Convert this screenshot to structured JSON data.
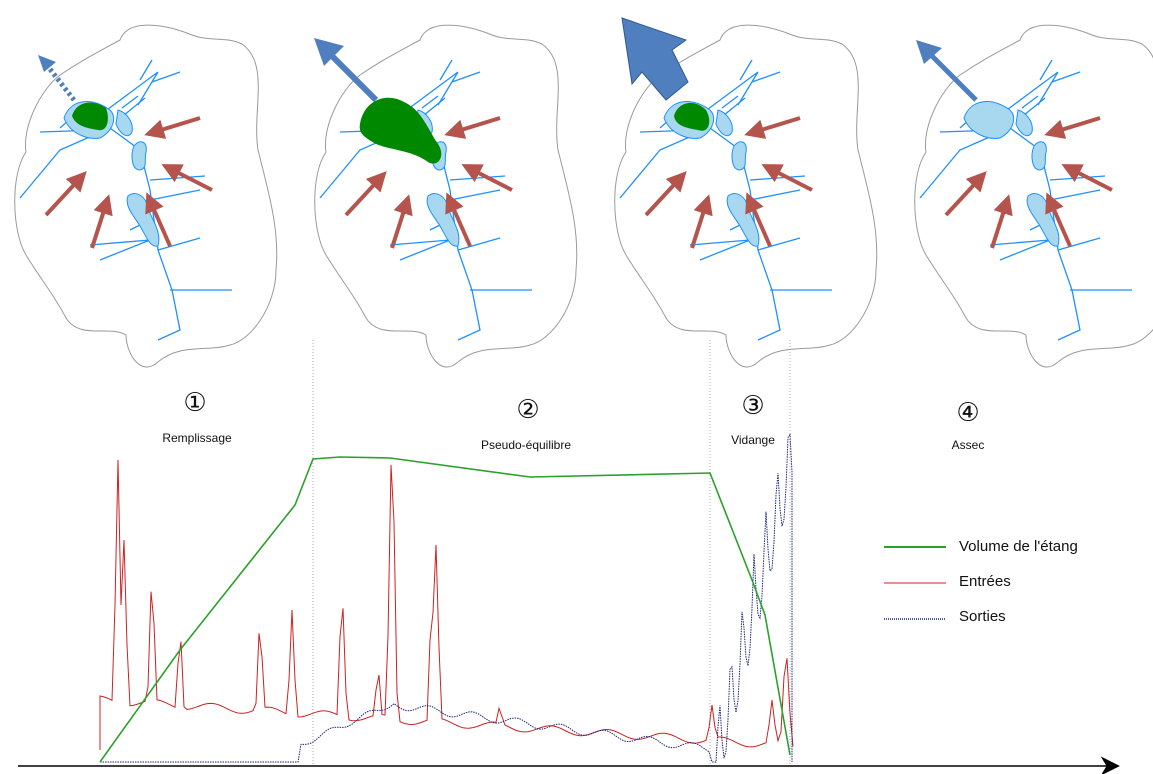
{
  "phases": [
    {
      "number": "①",
      "label": "Remplissage"
    },
    {
      "number": "②",
      "label": "Pseudo-équilibre"
    },
    {
      "number": "③",
      "label": "Vidange"
    },
    {
      "number": "④",
      "label": "Assec"
    }
  ],
  "legend": {
    "volume": "Volume de l'étang",
    "inflow": "Entrées",
    "outflow": "Sorties"
  },
  "colors": {
    "volume": "#2ca02c",
    "inflow": "#cc2222",
    "outflow": "#1a237e",
    "water": "#a7d8f0",
    "river": "#1e90ff",
    "pond": "#008800",
    "arrow_in": "#b5544c",
    "arrow_out": "#4f7fbf"
  },
  "icons": {
    "inflow_arrows": "arrow-in-icon",
    "outflow_arrow": "arrow-out-icon",
    "axis": "time-axis-arrow-icon"
  }
}
